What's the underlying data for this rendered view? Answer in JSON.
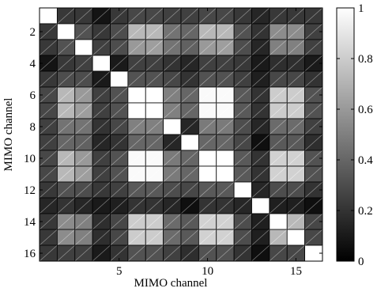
{
  "chart_data": {
    "type": "heatmap",
    "title": "",
    "xlabel": "MIMO channel",
    "ylabel": "MIMO channel",
    "x_ticks": [
      5,
      10,
      15
    ],
    "y_ticks": [
      2,
      4,
      6,
      8,
      10,
      12,
      14,
      16
    ],
    "rows": 16,
    "cols": 16,
    "colorbar": {
      "min": 0,
      "max": 1,
      "ticks": [
        0,
        0.2,
        0.4,
        0.6,
        0.8,
        1
      ],
      "tick_labels": [
        "0",
        "0.2",
        "0.4",
        "0.6",
        "0.8",
        "1"
      ],
      "colormap": "gray"
    },
    "grid": true,
    "values": [
      [
        1.0,
        0.22,
        0.22,
        0.08,
        0.22,
        0.28,
        0.28,
        0.25,
        0.25,
        0.28,
        0.28,
        0.22,
        0.15,
        0.22,
        0.22,
        0.22
      ],
      [
        0.22,
        1.0,
        0.32,
        0.22,
        0.3,
        0.72,
        0.72,
        0.45,
        0.4,
        0.72,
        0.72,
        0.32,
        0.2,
        0.55,
        0.55,
        0.25
      ],
      [
        0.22,
        0.32,
        1.0,
        0.25,
        0.3,
        0.6,
        0.62,
        0.45,
        0.38,
        0.6,
        0.62,
        0.3,
        0.15,
        0.5,
        0.5,
        0.25
      ],
      [
        0.08,
        0.22,
        0.25,
        1.0,
        0.1,
        0.25,
        0.25,
        0.2,
        0.15,
        0.25,
        0.25,
        0.22,
        0.1,
        0.18,
        0.18,
        0.1
      ],
      [
        0.22,
        0.3,
        0.3,
        0.1,
        1.0,
        0.32,
        0.32,
        0.28,
        0.2,
        0.32,
        0.32,
        0.25,
        0.12,
        0.28,
        0.28,
        0.2
      ],
      [
        0.28,
        0.72,
        0.6,
        0.25,
        0.32,
        1.0,
        1.0,
        0.5,
        0.4,
        0.98,
        0.98,
        0.35,
        0.2,
        0.8,
        0.8,
        0.32
      ],
      [
        0.28,
        0.72,
        0.62,
        0.25,
        0.32,
        1.0,
        1.0,
        0.5,
        0.4,
        0.98,
        0.98,
        0.35,
        0.2,
        0.8,
        0.8,
        0.32
      ],
      [
        0.25,
        0.45,
        0.45,
        0.2,
        0.28,
        0.5,
        0.5,
        1.0,
        0.15,
        0.48,
        0.48,
        0.3,
        0.15,
        0.42,
        0.42,
        0.25
      ],
      [
        0.25,
        0.4,
        0.38,
        0.15,
        0.2,
        0.4,
        0.4,
        0.15,
        1.0,
        0.4,
        0.4,
        0.28,
        0.06,
        0.35,
        0.35,
        0.18
      ],
      [
        0.28,
        0.72,
        0.6,
        0.25,
        0.32,
        0.98,
        0.98,
        0.48,
        0.4,
        1.0,
        1.0,
        0.35,
        0.2,
        0.82,
        0.82,
        0.32
      ],
      [
        0.28,
        0.72,
        0.62,
        0.25,
        0.32,
        0.98,
        0.98,
        0.48,
        0.4,
        1.0,
        1.0,
        0.35,
        0.2,
        0.82,
        0.82,
        0.32
      ],
      [
        0.22,
        0.32,
        0.3,
        0.22,
        0.25,
        0.35,
        0.35,
        0.3,
        0.28,
        0.35,
        0.35,
        1.0,
        0.15,
        0.3,
        0.3,
        0.2
      ],
      [
        0.15,
        0.2,
        0.15,
        0.1,
        0.12,
        0.2,
        0.2,
        0.15,
        0.06,
        0.2,
        0.2,
        0.15,
        1.0,
        0.12,
        0.12,
        0.06
      ],
      [
        0.22,
        0.55,
        0.5,
        0.18,
        0.28,
        0.8,
        0.8,
        0.42,
        0.35,
        0.82,
        0.82,
        0.3,
        0.12,
        1.0,
        0.72,
        0.28
      ],
      [
        0.22,
        0.55,
        0.5,
        0.18,
        0.28,
        0.8,
        0.8,
        0.42,
        0.35,
        0.82,
        0.82,
        0.3,
        0.12,
        0.72,
        1.0,
        0.28
      ],
      [
        0.22,
        0.25,
        0.25,
        0.1,
        0.2,
        0.32,
        0.32,
        0.25,
        0.18,
        0.32,
        0.32,
        0.2,
        0.06,
        0.28,
        0.28,
        1.0
      ]
    ]
  }
}
